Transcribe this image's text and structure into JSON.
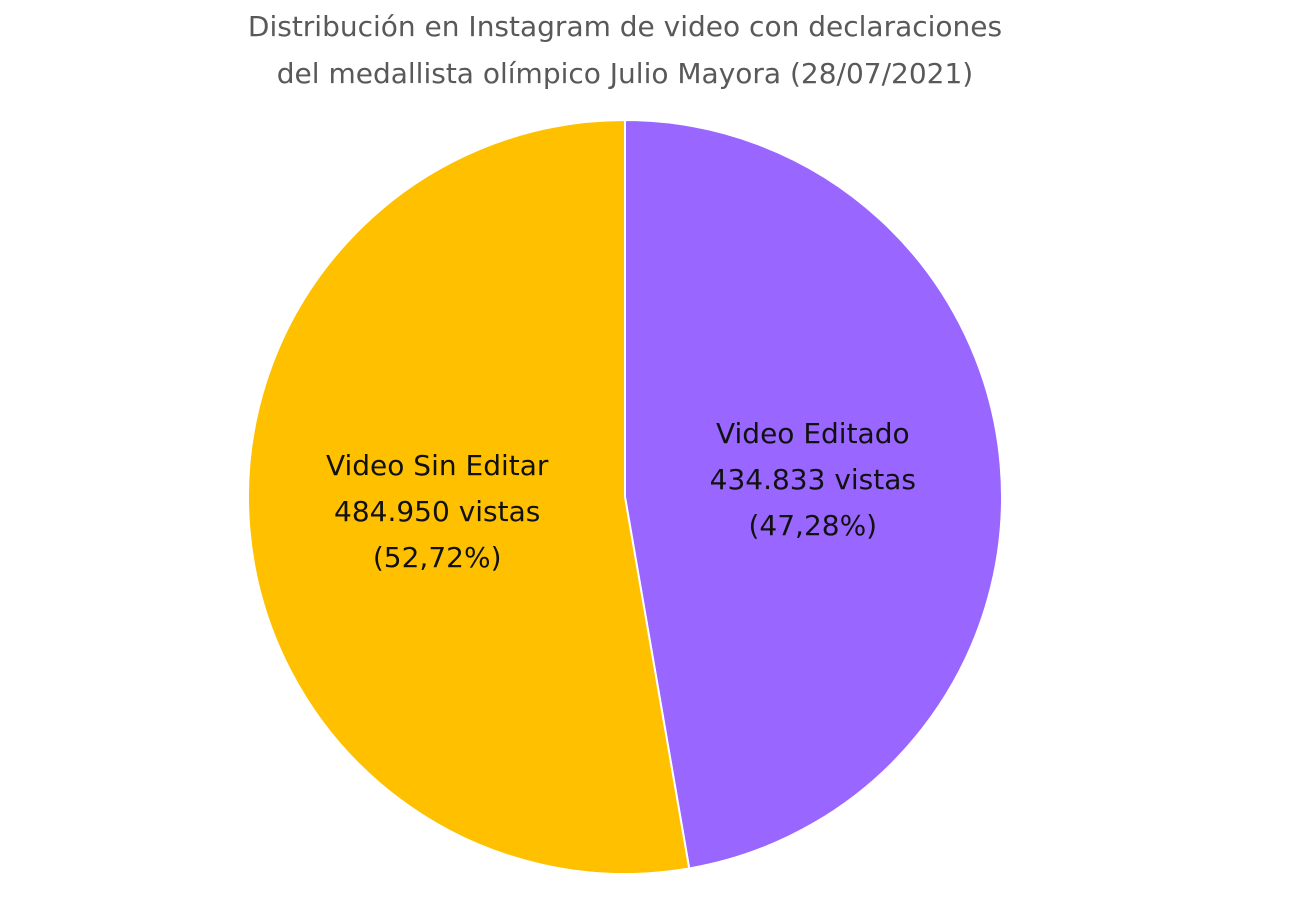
{
  "chart_data": {
    "type": "pie",
    "title": [
      "Distribución en Instagram de video con declaraciones",
      "del medallista olímpico Julio Mayora (28/07/2021)"
    ],
    "categories": [
      "Video Editado",
      "Video Sin Editar"
    ],
    "values": [
      434833,
      484950
    ],
    "value_labels": [
      "434.833 vistas",
      "484.950 vistas"
    ],
    "percentages": [
      47.28,
      52.72
    ],
    "percentage_labels": [
      "(47,28%)",
      "(52,72%)"
    ],
    "colors": [
      "#9966ff",
      "#ffc000"
    ],
    "start_angle": 0,
    "direction": "clockwise"
  }
}
